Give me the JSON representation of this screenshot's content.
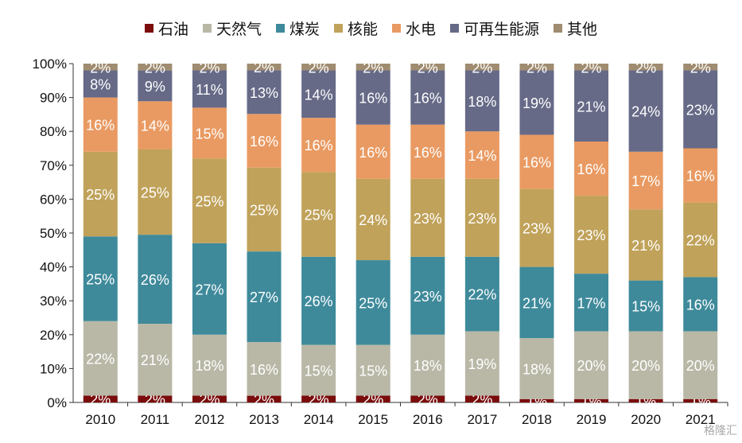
{
  "chart_data": {
    "type": "bar",
    "stacked": true,
    "categories": [
      "2010",
      "2011",
      "2012",
      "2013",
      "2014",
      "2015",
      "2016",
      "2017",
      "2018",
      "2019",
      "2020",
      "2021"
    ],
    "series": [
      {
        "name": "石油",
        "color": "#7b0c0c",
        "values": [
          2,
          2,
          2,
          2,
          2,
          2,
          2,
          2,
          1,
          1,
          1,
          1
        ]
      },
      {
        "name": "天然气",
        "color": "#b9b8a7",
        "values": [
          22,
          21,
          18,
          16,
          15,
          15,
          18,
          19,
          18,
          20,
          20,
          20
        ]
      },
      {
        "name": "煤炭",
        "color": "#3e8a9b",
        "values": [
          25,
          26,
          27,
          27,
          26,
          25,
          23,
          22,
          21,
          17,
          15,
          16
        ]
      },
      {
        "name": "核能",
        "color": "#c0a25a",
        "values": [
          25,
          25,
          25,
          25,
          25,
          24,
          23,
          23,
          23,
          23,
          21,
          22
        ]
      },
      {
        "name": "水电",
        "color": "#e99a62",
        "values": [
          16,
          14,
          15,
          16,
          16,
          16,
          16,
          14,
          16,
          16,
          17,
          16
        ]
      },
      {
        "name": "可再生能源",
        "color": "#666a87",
        "values": [
          8,
          9,
          11,
          13,
          14,
          16,
          16,
          18,
          19,
          21,
          24,
          23
        ]
      },
      {
        "name": "其他",
        "color": "#a08c70",
        "values": [
          2,
          2,
          2,
          2,
          2,
          2,
          2,
          2,
          2,
          2,
          2,
          2
        ]
      }
    ],
    "ylim": [
      0,
      100
    ],
    "yticks": [
      "0%",
      "10%",
      "20%",
      "30%",
      "40%",
      "50%",
      "60%",
      "70%",
      "80%",
      "90%",
      "100%"
    ],
    "legend_position": "top"
  },
  "watermark": "格隆汇"
}
